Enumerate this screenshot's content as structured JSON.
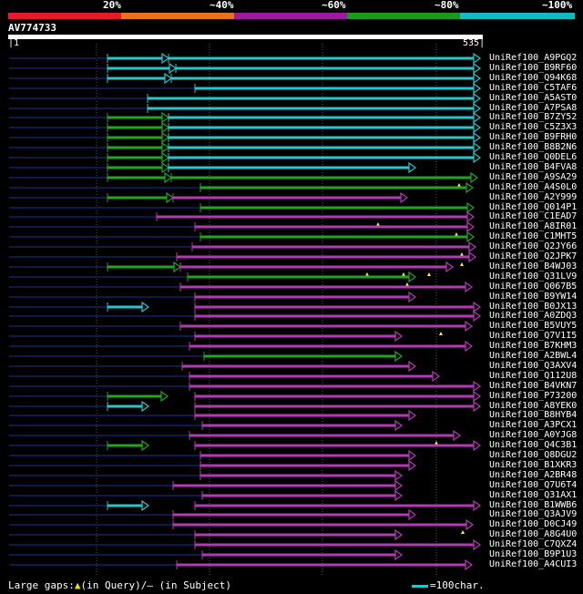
{
  "scale": {
    "segments": [
      {
        "label": "20%",
        "color": "#e8192c"
      },
      {
        "label": "~40%",
        "color": "#e8731a"
      },
      {
        "label": "~60%",
        "color": "#9c1b9c"
      },
      {
        "label": "~80%",
        "color": "#1a9a1a"
      },
      {
        "label": "~100%",
        "color": "#18b8c0"
      }
    ]
  },
  "query": {
    "name": "AV774733",
    "start": "1",
    "end": "535",
    "length": 535
  },
  "colors": {
    "cyan": "#27c8cc",
    "magenta": "#b439b4",
    "green": "#22a522",
    "dark": "#111a44",
    "gap": "#ffee44"
  },
  "hits": [
    {
      "name": "UniRef100_A9PGQ2",
      "dark": [
        10,
        118
      ],
      "segs": [
        [
          118,
          185,
          "cyan"
        ],
        [
          185,
          527,
          "cyan"
        ]
      ]
    },
    {
      "name": "UniRef100_B9RF60",
      "dark": [
        10,
        118
      ],
      "segs": [
        [
          118,
          193,
          "cyan"
        ],
        [
          193,
          527,
          "cyan"
        ]
      ]
    },
    {
      "name": "UniRef100_Q94K68",
      "dark": [
        10,
        118
      ],
      "segs": [
        [
          118,
          188,
          "cyan"
        ],
        [
          188,
          527,
          "cyan"
        ]
      ]
    },
    {
      "name": "UniRef100_C5TAF6",
      "dark": [
        10,
        214
      ],
      "segs": [
        [
          214,
          527,
          "cyan"
        ]
      ]
    },
    {
      "name": "UniRef100_A5AST0",
      "dark": [
        10,
        162
      ],
      "segs": [
        [
          162,
          527,
          "cyan"
        ]
      ]
    },
    {
      "name": "UniRef100_A7PSA8",
      "dark": [
        10,
        162
      ],
      "segs": [
        [
          162,
          527,
          "cyan"
        ]
      ]
    },
    {
      "name": "UniRef100_B7ZY52",
      "dark": [
        10,
        118
      ],
      "segs": [
        [
          118,
          185,
          "green"
        ],
        [
          185,
          527,
          "cyan"
        ]
      ]
    },
    {
      "name": "UniRef100_C5Z3X3",
      "dark": [
        10,
        118
      ],
      "segs": [
        [
          118,
          185,
          "green"
        ],
        [
          185,
          527,
          "cyan"
        ]
      ]
    },
    {
      "name": "UniRef100_B9FRH0",
      "dark": [
        10,
        118
      ],
      "segs": [
        [
          118,
          185,
          "green"
        ],
        [
          185,
          527,
          "cyan"
        ]
      ]
    },
    {
      "name": "UniRef100_B8B2N6",
      "dark": [
        10,
        118
      ],
      "segs": [
        [
          118,
          185,
          "green"
        ],
        [
          185,
          527,
          "cyan"
        ]
      ]
    },
    {
      "name": "UniRef100_Q0DEL6",
      "dark": [
        10,
        118
      ],
      "segs": [
        [
          118,
          185,
          "green"
        ],
        [
          185,
          527,
          "cyan"
        ]
      ]
    },
    {
      "name": "UniRef100_B4FVA8",
      "dark": [
        10,
        118
      ],
      "segs": [
        [
          118,
          185,
          "green"
        ],
        [
          185,
          456,
          "cyan"
        ]
      ]
    },
    {
      "name": "UniRef100_A9SA29",
      "dark": [
        10,
        118
      ],
      "segs": [
        [
          118,
          188,
          "green"
        ],
        [
          188,
          524,
          "green"
        ]
      ],
      "gaps": [
        504
      ]
    },
    {
      "name": "UniRef100_A4S0L0",
      "dark": [
        10,
        220
      ],
      "segs": [
        [
          220,
          519,
          "green"
        ]
      ]
    },
    {
      "name": "UniRef100_A2Y999",
      "dark": [
        10,
        118
      ],
      "segs": [
        [
          118,
          190,
          "green"
        ],
        [
          190,
          447,
          "magenta"
        ]
      ]
    },
    {
      "name": "UniRef100_Q014P1",
      "dark": [
        10,
        220
      ],
      "segs": [
        [
          220,
          520,
          "green"
        ]
      ]
    },
    {
      "name": "UniRef100_C1EAD7",
      "dark": [
        10,
        172
      ],
      "segs": [
        [
          172,
          520,
          "magenta"
        ]
      ],
      "gaps": [
        415
      ]
    },
    {
      "name": "UniRef100_A8IR01",
      "dark": [
        10,
        214
      ],
      "segs": [
        [
          214,
          520,
          "magenta"
        ]
      ],
      "gaps": [
        501
      ]
    },
    {
      "name": "UniRef100_C1MHT5",
      "dark": [
        10,
        220
      ],
      "segs": [
        [
          220,
          520,
          "green"
        ]
      ]
    },
    {
      "name": "UniRef100_Q2JY66",
      "dark": [
        10,
        211
      ],
      "segs": [
        [
          211,
          522,
          "magenta"
        ]
      ],
      "gaps": [
        507
      ]
    },
    {
      "name": "UniRef100_Q2JPK7",
      "dark": [
        10,
        194
      ],
      "segs": [
        [
          194,
          522,
          "magenta"
        ]
      ],
      "gaps": [
        507
      ]
    },
    {
      "name": "UniRef100_B4WJ03",
      "dark": [
        10,
        118
      ],
      "segs": [
        [
          118,
          198,
          "green"
        ],
        [
          198,
          497,
          "magenta"
        ]
      ],
      "gaps": [
        403,
        443,
        471
      ]
    },
    {
      "name": "UniRef100_Q31LV9",
      "dark": [
        10,
        206
      ],
      "segs": [
        [
          206,
          456,
          "green"
        ]
      ],
      "gaps": [
        447
      ]
    },
    {
      "name": "UniRef100_Q067B5",
      "dark": [
        10,
        198
      ],
      "segs": [
        [
          198,
          518,
          "magenta"
        ]
      ]
    },
    {
      "name": "UniRef100_B9YW14",
      "dark": [
        10,
        214
      ],
      "segs": [
        [
          214,
          456,
          "magenta"
        ]
      ]
    },
    {
      "name": "UniRef100_B0JX13",
      "dark": [
        10,
        118
      ],
      "segs": [
        [
          118,
          163,
          "cyan"
        ],
        [
          214,
          527,
          "magenta"
        ]
      ]
    },
    {
      "name": "UniRef100_A0ZDQ3",
      "dark": [
        10,
        214
      ],
      "segs": [
        [
          214,
          527,
          "magenta"
        ]
      ]
    },
    {
      "name": "UniRef100_B5VUY5",
      "dark": [
        10,
        198
      ],
      "segs": [
        [
          198,
          518,
          "magenta"
        ]
      ],
      "gaps": [
        484
      ]
    },
    {
      "name": "UniRef100_Q7V1I5",
      "dark": [
        10,
        214
      ],
      "segs": [
        [
          214,
          441,
          "magenta"
        ]
      ]
    },
    {
      "name": "UniRef100_B7KHM3",
      "dark": [
        10,
        208
      ],
      "segs": [
        [
          208,
          518,
          "magenta"
        ]
      ]
    },
    {
      "name": "UniRef100_A2BWL4",
      "dark": [
        10,
        224
      ],
      "segs": [
        [
          224,
          441,
          "green"
        ]
      ]
    },
    {
      "name": "UniRef100_Q3AXV4",
      "dark": [
        10,
        200
      ],
      "segs": [
        [
          200,
          456,
          "magenta"
        ]
      ]
    },
    {
      "name": "UniRef100_Q112U8",
      "dark": [
        10,
        208
      ],
      "segs": [
        [
          208,
          482,
          "magenta"
        ]
      ]
    },
    {
      "name": "UniRef100_B4VKN7",
      "dark": [
        10,
        208
      ],
      "segs": [
        [
          208,
          527,
          "magenta"
        ]
      ]
    },
    {
      "name": "UniRef100_P73200",
      "dark": [
        10,
        118
      ],
      "segs": [
        [
          118,
          184,
          "green"
        ],
        [
          214,
          527,
          "magenta"
        ]
      ]
    },
    {
      "name": "UniRef100_A8YEK0",
      "dark": [
        10,
        118
      ],
      "segs": [
        [
          118,
          163,
          "cyan"
        ],
        [
          214,
          527,
          "magenta"
        ]
      ]
    },
    {
      "name": "UniRef100_B8HYB4",
      "dark": [
        10,
        214
      ],
      "segs": [
        [
          214,
          456,
          "magenta"
        ]
      ]
    },
    {
      "name": "UniRef100_A3PCX1",
      "dark": [
        10,
        222
      ],
      "segs": [
        [
          222,
          441,
          "magenta"
        ]
      ]
    },
    {
      "name": "UniRef100_A0YJG8",
      "dark": [
        10,
        208
      ],
      "segs": [
        [
          208,
          505,
          "magenta"
        ]
      ],
      "gaps": [
        479
      ]
    },
    {
      "name": "UniRef100_Q4C3B1",
      "dark": [
        10,
        118
      ],
      "segs": [
        [
          118,
          163,
          "green"
        ],
        [
          214,
          527,
          "magenta"
        ]
      ]
    },
    {
      "name": "UniRef100_Q8DGU2",
      "dark": [
        10,
        220
      ],
      "segs": [
        [
          220,
          456,
          "magenta"
        ]
      ]
    },
    {
      "name": "UniRef100_B1XKR3",
      "dark": [
        10,
        220
      ],
      "segs": [
        [
          220,
          456,
          "magenta"
        ]
      ]
    },
    {
      "name": "UniRef100_A2BR48",
      "dark": [
        10,
        220
      ],
      "segs": [
        [
          220,
          441,
          "magenta"
        ]
      ]
    },
    {
      "name": "UniRef100_Q7U6T4",
      "dark": [
        10,
        190
      ],
      "segs": [
        [
          190,
          441,
          "magenta"
        ]
      ]
    },
    {
      "name": "UniRef100_Q31AX1",
      "dark": [
        10,
        222
      ],
      "segs": [
        [
          222,
          441,
          "magenta"
        ]
      ]
    },
    {
      "name": "UniRef100_B1WWB6",
      "dark": [
        10,
        118
      ],
      "segs": [
        [
          118,
          163,
          "cyan"
        ],
        [
          214,
          527,
          "magenta"
        ]
      ]
    },
    {
      "name": "UniRef100_Q3AJV9",
      "dark": [
        10,
        190
      ],
      "segs": [
        [
          190,
          456,
          "magenta"
        ]
      ]
    },
    {
      "name": "UniRef100_D0CJ49",
      "dark": [
        10,
        190
      ],
      "segs": [
        [
          190,
          519,
          "magenta"
        ]
      ],
      "gaps": [
        508
      ]
    },
    {
      "name": "UniRef100_A8G4U0",
      "dark": [
        10,
        214
      ],
      "segs": [
        [
          214,
          441,
          "magenta"
        ]
      ]
    },
    {
      "name": "UniRef100_C7QXZ4",
      "dark": [
        10,
        214
      ],
      "segs": [
        [
          214,
          527,
          "magenta"
        ]
      ]
    },
    {
      "name": "UniRef100_B9P1U3",
      "dark": [
        10,
        222
      ],
      "segs": [
        [
          222,
          441,
          "magenta"
        ]
      ]
    },
    {
      "name": "UniRef100_A4CUI3",
      "dark": [
        10,
        194
      ],
      "segs": [
        [
          194,
          518,
          "magenta"
        ]
      ]
    }
  ],
  "legend": {
    "prefix": "Large gaps:",
    "tri": "▲",
    "suffix": "(in Query)/– (in Subject)",
    "scalebar_label": "=100char."
  }
}
